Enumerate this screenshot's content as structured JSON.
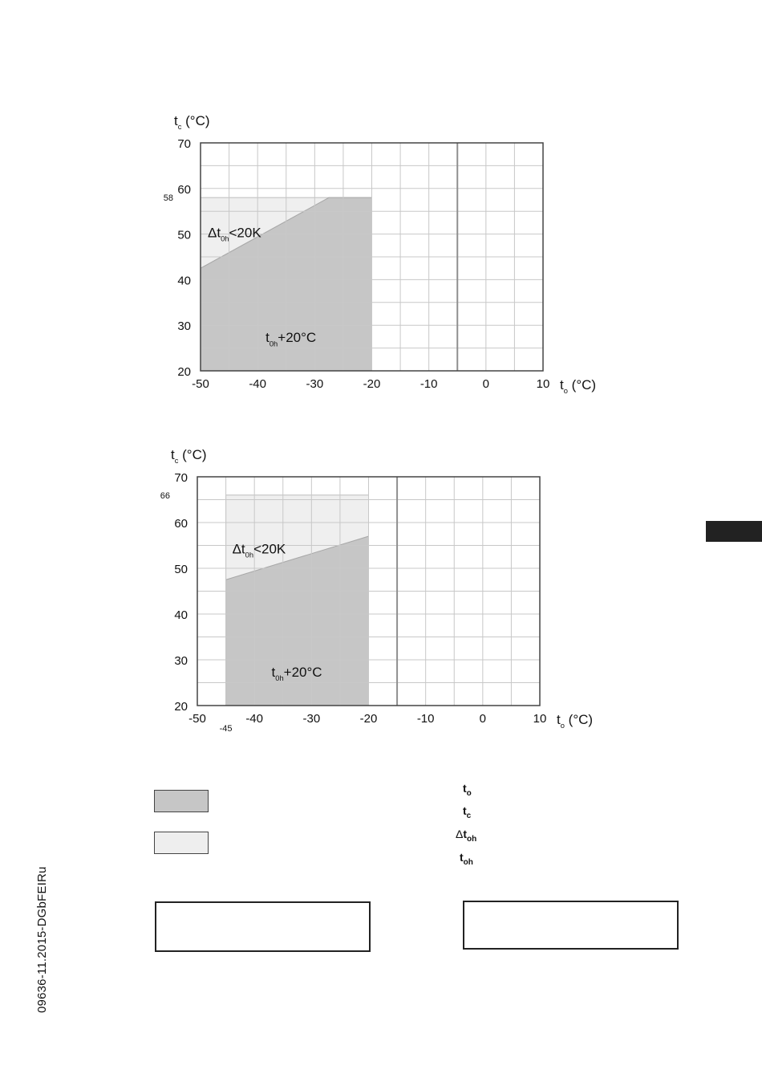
{
  "document": {
    "doc_id": "09636-11.2015-DGbFEIRu"
  },
  "legend": {
    "swatch_colors": [
      "#c6c6c6",
      "#eeeeee"
    ],
    "symbols": [
      {
        "prefix": "",
        "base": "t",
        "sub": "o"
      },
      {
        "prefix": "",
        "base": "t",
        "sub": "c"
      },
      {
        "prefix": "Δ",
        "base": "t",
        "sub": "oh"
      },
      {
        "prefix": "",
        "base": "t",
        "sub": "oh"
      }
    ]
  },
  "chart_data": [
    {
      "type": "area",
      "ylabel": {
        "base": "t",
        "sub": "c",
        "unit": " (°C)"
      },
      "xlabel": {
        "base": "t",
        "sub": "o",
        "unit": " (°C)"
      },
      "xlim": [
        -50,
        10
      ],
      "ylim": [
        20,
        70
      ],
      "x_ticks": [
        "-50",
        "-40",
        "-30",
        "-20",
        "-10",
        "0",
        "10"
      ],
      "y_ticks": [
        "20",
        "30",
        "40",
        "50",
        "60",
        "70"
      ],
      "extra_y_tick": "58",
      "grid": true,
      "vertical_line_x": -5,
      "colors": {
        "dark": "#c6c6c6",
        "light": "#efefef",
        "grid": "#c8c8c8",
        "border": "#444444"
      },
      "envelope": {
        "x": [
          -50,
          -20
        ],
        "y_max": 58
      },
      "boundary_line": {
        "x": [
          -50,
          -27.5,
          -20
        ],
        "y": [
          42.5,
          58,
          58
        ]
      },
      "label_upper": {
        "prefix": "Δt",
        "sub": "0h",
        "suffix": "<20K"
      },
      "label_lower": {
        "prefix": "t",
        "sub": "0h",
        "suffix": "+20°C"
      }
    },
    {
      "type": "area",
      "ylabel": {
        "base": "t",
        "sub": "c",
        "unit": " (°C)"
      },
      "xlabel": {
        "base": "t",
        "sub": "o",
        "unit": " (°C)"
      },
      "xlim": [
        -50,
        10
      ],
      "ylim": [
        20,
        70
      ],
      "x_ticks": [
        "-50",
        "-40",
        "-30",
        "-20",
        "-10",
        "0",
        "10"
      ],
      "y_ticks": [
        "20",
        "30",
        "40",
        "50",
        "60",
        "70"
      ],
      "extra_y_tick": "66",
      "extra_x_tick": "-45",
      "grid": true,
      "vertical_line_x": -15,
      "colors": {
        "dark": "#c6c6c6",
        "light": "#efefef",
        "grid": "#c8c8c8",
        "border": "#444444"
      },
      "envelope": {
        "x": [
          -45,
          -20
        ],
        "y_max": 66
      },
      "boundary_line": {
        "x": [
          -45,
          -20
        ],
        "y": [
          47.5,
          57
        ]
      },
      "label_upper": {
        "prefix": "Δt",
        "sub": "0h",
        "suffix": "<20K"
      },
      "label_lower": {
        "prefix": "t",
        "sub": "0h",
        "suffix": "+20°C"
      }
    }
  ]
}
